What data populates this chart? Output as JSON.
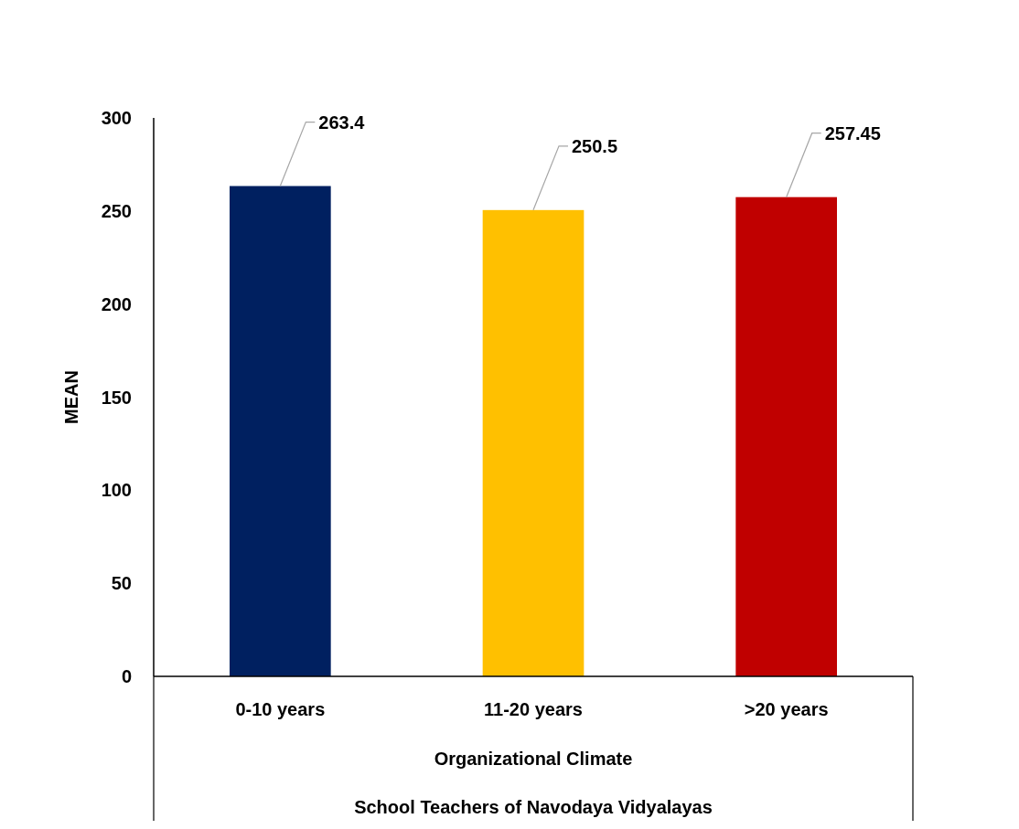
{
  "chart_data": {
    "type": "bar",
    "ylabel": "MEAN",
    "xlabel": "Organizational Climate",
    "annotations": [
      "School Teachers of Navodaya Vidyalayas"
    ],
    "categories": [
      "0-10 years",
      "11-20 years",
      ">20 years"
    ],
    "values": [
      263.4,
      250.5,
      257.45
    ],
    "colors": [
      "#002060",
      "#ffc000",
      "#c00000"
    ],
    "ylim": [
      0,
      300
    ],
    "yticks": [
      0,
      50,
      100,
      150,
      200,
      250,
      300
    ],
    "data_labels": true,
    "grid": false
  }
}
